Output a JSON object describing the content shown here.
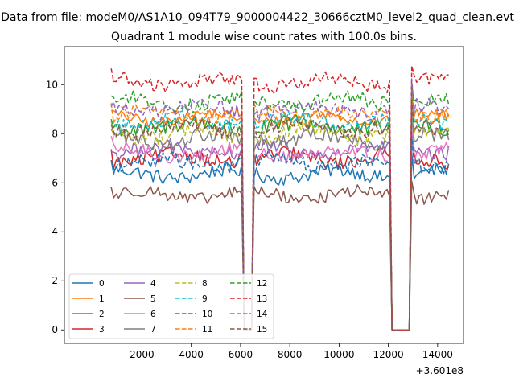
{
  "figure": {
    "suptitle": "Data from file: modeM0/AS1A10_094T79_9000004422_30666cztM0_level2_quad_clean.evt",
    "x_offset_label": "+3.601e8"
  },
  "chart_data": {
    "type": "line",
    "title": "Quadrant 1 module wise count rates with 100.0s bins.",
    "xlabel": "",
    "ylabel": "",
    "xlim": [
      -1150,
      15050
    ],
    "ylim": [
      -0.55,
      11.55
    ],
    "x_ticks": [
      2000,
      4000,
      6000,
      8000,
      10000,
      12000,
      14000
    ],
    "x_tick_labels": [
      "2000",
      "4000",
      "6000",
      "8000",
      "10000",
      "12000",
      "14000"
    ],
    "y_ticks": [
      0,
      2,
      4,
      6,
      8,
      10
    ],
    "y_tick_labels": [
      "0",
      "2",
      "4",
      "6",
      "8",
      "10"
    ],
    "x_range": [
      750,
      14450
    ],
    "bin_width": 100,
    "gaps": [
      [
        6100,
        6450
      ],
      [
        12150,
        12900
      ]
    ],
    "legend_position": "lower-left",
    "series": [
      {
        "name": "0",
        "base": 6.35,
        "amp": 0.28,
        "color": "#1f77b4",
        "dashed": false
      },
      {
        "name": "1",
        "base": 8.65,
        "amp": 0.22,
        "color": "#ff7f0e",
        "dashed": false
      },
      {
        "name": "2",
        "base": 8.3,
        "amp": 0.35,
        "color": "#2ca02c",
        "dashed": false
      },
      {
        "name": "3",
        "base": 7.0,
        "amp": 0.3,
        "color": "#d62728",
        "dashed": false
      },
      {
        "name": "4",
        "base": 7.3,
        "amp": 0.3,
        "color": "#9467bd",
        "dashed": false
      },
      {
        "name": "5",
        "base": 5.5,
        "amp": 0.25,
        "color": "#8c564b",
        "dashed": false
      },
      {
        "name": "6",
        "base": 7.2,
        "amp": 0.28,
        "color": "#e377c2",
        "dashed": false
      },
      {
        "name": "7",
        "base": 7.8,
        "amp": 0.3,
        "color": "#7f7f7f",
        "dashed": false
      },
      {
        "name": "8",
        "base": 8.0,
        "amp": 0.3,
        "color": "#bcbd22",
        "dashed": true
      },
      {
        "name": "9",
        "base": 8.5,
        "amp": 0.3,
        "color": "#17becf",
        "dashed": true
      },
      {
        "name": "10",
        "base": 6.8,
        "amp": 0.3,
        "color": "#1f77b4",
        "dashed": true
      },
      {
        "name": "11",
        "base": 8.8,
        "amp": 0.3,
        "color": "#ff7f0e",
        "dashed": true
      },
      {
        "name": "12",
        "base": 9.3,
        "amp": 0.3,
        "color": "#2ca02c",
        "dashed": true
      },
      {
        "name": "13",
        "base": 10.1,
        "amp": 0.28,
        "color": "#d62728",
        "dashed": true
      },
      {
        "name": "14",
        "base": 9.0,
        "amp": 0.3,
        "color": "#9467bd",
        "dashed": true
      },
      {
        "name": "15",
        "base": 8.2,
        "amp": 0.3,
        "color": "#8c564b",
        "dashed": true
      }
    ]
  }
}
